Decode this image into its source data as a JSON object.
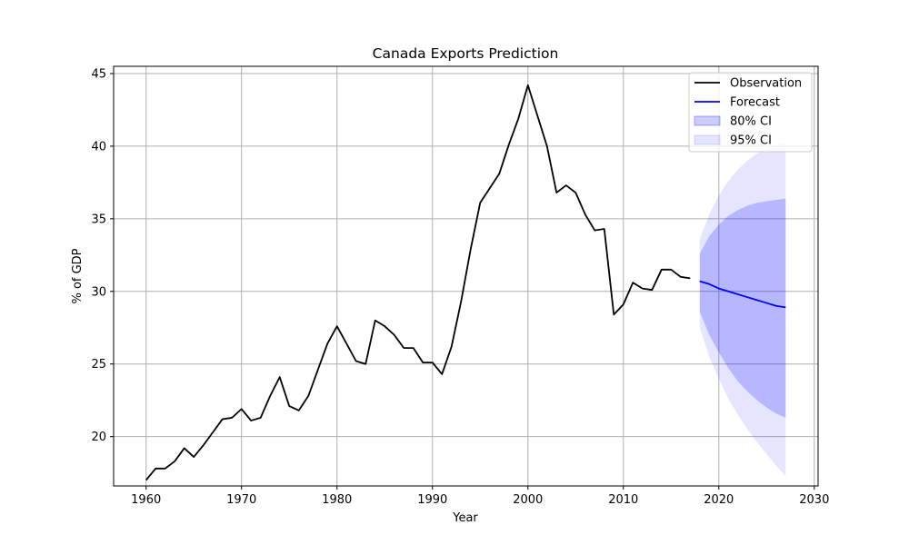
{
  "chart_data": {
    "type": "line",
    "title": "Canada Exports Prediction",
    "xlabel": "Year",
    "ylabel": "% of GDP",
    "xlim": [
      1956.6,
      2030.4
    ],
    "ylim": [
      16.6,
      45.5
    ],
    "x_ticks": [
      1960,
      1970,
      1980,
      1990,
      2000,
      2010,
      2020,
      2030
    ],
    "y_ticks": [
      20,
      25,
      30,
      35,
      40,
      45
    ],
    "x_tick_labels": [
      "1960",
      "1970",
      "1980",
      "1990",
      "2000",
      "2010",
      "2020",
      "2030"
    ],
    "y_tick_labels": [
      "20",
      "25",
      "30",
      "35",
      "40",
      "45"
    ],
    "grid": true,
    "legend_position": "top-right",
    "colors": {
      "observation": "#000000",
      "forecast": "#0000ff",
      "ci80": "#0000ff",
      "ci95": "#0000ff",
      "grid": "#b0b0b0"
    },
    "legend": [
      {
        "label": "Observation",
        "kind": "line",
        "color": "#000000"
      },
      {
        "label": "Forecast",
        "kind": "line",
        "color": "#0000ff"
      },
      {
        "label": "80% CI",
        "kind": "patch",
        "color": "#0000ff",
        "opacity": 0.2
      },
      {
        "label": "95% CI",
        "kind": "patch",
        "color": "#0000ff",
        "opacity": 0.1
      }
    ],
    "series": [
      {
        "name": "Observation",
        "x": [
          1960,
          1961,
          1962,
          1963,
          1964,
          1965,
          1966,
          1967,
          1968,
          1969,
          1970,
          1971,
          1972,
          1973,
          1974,
          1975,
          1976,
          1977,
          1978,
          1979,
          1980,
          1981,
          1982,
          1983,
          1984,
          1985,
          1986,
          1987,
          1988,
          1989,
          1990,
          1991,
          1992,
          1993,
          1994,
          1995,
          1996,
          1997,
          1998,
          1999,
          2000,
          2001,
          2002,
          2003,
          2004,
          2005,
          2006,
          2007,
          2008,
          2009,
          2010,
          2011,
          2012,
          2013,
          2014,
          2015,
          2016,
          2017
        ],
        "y": [
          17.0,
          17.8,
          17.8,
          18.3,
          19.2,
          18.6,
          19.4,
          20.3,
          21.2,
          21.3,
          21.9,
          21.1,
          21.3,
          22.8,
          24.1,
          22.1,
          21.8,
          22.8,
          24.6,
          26.4,
          27.6,
          26.4,
          25.2,
          25.0,
          28.0,
          27.6,
          27.0,
          26.1,
          26.1,
          25.1,
          25.1,
          24.3,
          26.2,
          29.3,
          32.9,
          36.1,
          37.1,
          38.1,
          40.1,
          41.9,
          44.2,
          42.1,
          40.0,
          36.8,
          37.3,
          36.8,
          35.3,
          34.2,
          34.3,
          28.4,
          29.1,
          30.6,
          30.2,
          30.1,
          31.5,
          31.5,
          31.0,
          30.9
        ]
      },
      {
        "name": "Forecast",
        "x": [
          2018,
          2019,
          2020,
          2021,
          2022,
          2023,
          2024,
          2025,
          2026,
          2027
        ],
        "y": [
          30.7,
          30.5,
          30.2,
          30.0,
          29.8,
          29.6,
          29.4,
          29.2,
          29.0,
          28.9
        ]
      }
    ],
    "bands": [
      {
        "name": "95% CI",
        "x": [
          2018,
          2019,
          2020,
          2021,
          2022,
          2023,
          2024,
          2025,
          2026,
          2027
        ],
        "lower": [
          27.5,
          25.5,
          24.0,
          22.6,
          21.5,
          20.5,
          19.6,
          18.8,
          18.0,
          17.3
        ],
        "upper": [
          33.6,
          35.3,
          36.6,
          37.6,
          38.4,
          39.0,
          39.5,
          39.9,
          40.1,
          40.3
        ]
      },
      {
        "name": "80% CI",
        "x": [
          2018,
          2019,
          2020,
          2021,
          2022,
          2023,
          2024,
          2025,
          2026,
          2027
        ],
        "lower": [
          28.6,
          27.0,
          25.8,
          24.7,
          23.8,
          23.1,
          22.5,
          22.0,
          21.6,
          21.3
        ],
        "upper": [
          32.6,
          33.8,
          34.6,
          35.2,
          35.6,
          35.9,
          36.1,
          36.2,
          36.3,
          36.4
        ]
      }
    ]
  }
}
